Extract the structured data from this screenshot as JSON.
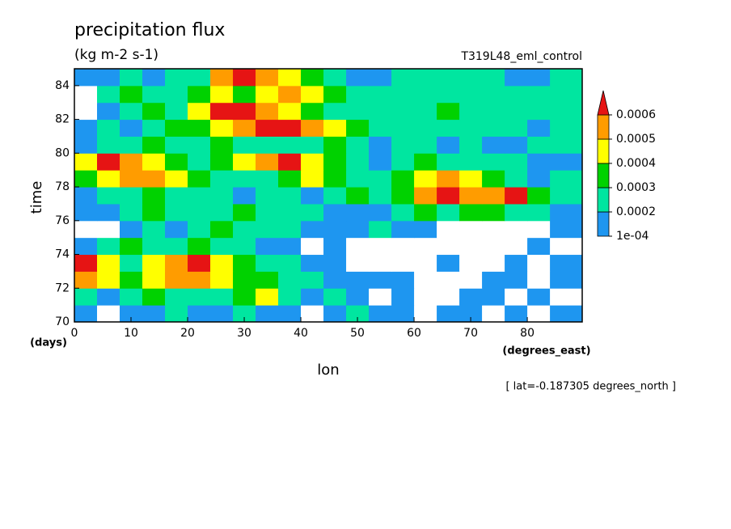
{
  "chart_data": {
    "type": "contourf",
    "title": "precipitation flux",
    "subtitle": "(kg m-2 s-1)",
    "annotation": "T319L48_eml_control",
    "xlabel": "lon",
    "xunit": "(degrees_east)",
    "ylabel": "time",
    "yunit": "(days)",
    "footnote": "[ lat=-0.187305 degrees_north ]",
    "xlim": [
      0,
      89.7
    ],
    "xticks": [
      0,
      10,
      20,
      30,
      40,
      50,
      60,
      70,
      80
    ],
    "ylim": [
      70,
      85
    ],
    "yticks": [
      70,
      72,
      74,
      76,
      78,
      80,
      82,
      84
    ],
    "x": [
      2,
      6,
      10,
      14,
      18,
      22,
      26,
      30,
      34,
      38,
      42,
      46,
      50,
      54,
      58,
      62,
      66,
      70,
      74,
      78,
      82,
      86
    ],
    "y": [
      70.5,
      71.5,
      72.5,
      73.5,
      74.5,
      75.5,
      76.5,
      77.5,
      78.5,
      79.5,
      80.5,
      81.5,
      82.5,
      83.5,
      84.5
    ],
    "z": [
      [
        0.00015,
        5e-05,
        0.00015,
        0.00015,
        0.00025,
        0.00015,
        0.00015,
        0.00025,
        0.00015,
        0.00015,
        5e-05,
        0.00015,
        0.00025,
        0.00015,
        0.00015,
        5e-05,
        0.00015,
        0.00015,
        5e-05,
        0.00015,
        5e-05,
        0.00015
      ],
      [
        0.00025,
        0.00015,
        0.00025,
        0.00035,
        0.00025,
        0.00025,
        0.00025,
        0.00035,
        0.00045,
        0.00025,
        0.00015,
        0.00025,
        0.00015,
        5e-05,
        0.00015,
        5e-05,
        5e-05,
        0.00015,
        0.00015,
        5e-05,
        0.00015,
        5e-05
      ],
      [
        0.00055,
        0.00045,
        0.00035,
        0.00045,
        0.00055,
        0.00055,
        0.00045,
        0.00035,
        0.00035,
        0.00025,
        0.00025,
        0.00015,
        0.00015,
        0.00015,
        0.00015,
        5e-05,
        5e-05,
        5e-05,
        0.00015,
        0.00015,
        5e-05,
        0.00015
      ],
      [
        0.00065,
        0.00045,
        0.00025,
        0.00045,
        0.00055,
        0.00065,
        0.00045,
        0.00035,
        0.00025,
        0.00025,
        0.00015,
        0.00015,
        5e-05,
        5e-05,
        5e-05,
        5e-05,
        0.00015,
        5e-05,
        5e-05,
        0.00015,
        5e-05,
        0.00015
      ],
      [
        0.00015,
        0.00025,
        0.00035,
        0.00025,
        0.00025,
        0.00035,
        0.00025,
        0.00025,
        0.00015,
        0.00015,
        5e-05,
        0.00015,
        5e-05,
        5e-05,
        5e-05,
        5e-05,
        5e-05,
        5e-05,
        5e-05,
        5e-05,
        0.00015,
        5e-05
      ],
      [
        5e-05,
        5e-05,
        0.00015,
        0.00025,
        0.00015,
        0.00025,
        0.00035,
        0.00025,
        0.00025,
        0.00025,
        0.00015,
        0.00015,
        0.00015,
        0.00025,
        0.00015,
        0.00015,
        5e-05,
        5e-05,
        5e-05,
        5e-05,
        5e-05,
        0.00015
      ],
      [
        0.00015,
        0.00015,
        0.00025,
        0.00035,
        0.00025,
        0.00025,
        0.00025,
        0.00035,
        0.00025,
        0.00025,
        0.00025,
        0.00015,
        0.00015,
        0.00015,
        0.00025,
        0.00035,
        0.00025,
        0.00035,
        0.00035,
        0.00025,
        0.00025,
        0.00015
      ],
      [
        0.00015,
        0.00025,
        0.00025,
        0.00035,
        0.00025,
        0.00025,
        0.00025,
        0.00015,
        0.00025,
        0.00025,
        0.00015,
        0.00025,
        0.00035,
        0.00025,
        0.00035,
        0.00055,
        0.00065,
        0.00055,
        0.00055,
        0.00065,
        0.00035,
        0.00025
      ],
      [
        0.00035,
        0.00045,
        0.00055,
        0.00055,
        0.00045,
        0.00035,
        0.00025,
        0.00025,
        0.00025,
        0.00035,
        0.00045,
        0.00035,
        0.00025,
        0.00025,
        0.00035,
        0.00045,
        0.00055,
        0.00045,
        0.00035,
        0.00025,
        0.00015,
        0.00025
      ],
      [
        0.00045,
        0.00065,
        0.00055,
        0.00045,
        0.00035,
        0.00025,
        0.00035,
        0.00045,
        0.00055,
        0.00065,
        0.00045,
        0.00035,
        0.00025,
        0.00015,
        0.00025,
        0.00035,
        0.00025,
        0.00025,
        0.00025,
        0.00025,
        0.00015,
        0.00015
      ],
      [
        0.00015,
        0.00025,
        0.00025,
        0.00035,
        0.00025,
        0.00025,
        0.00035,
        0.00025,
        0.00025,
        0.00025,
        0.00025,
        0.00035,
        0.00025,
        0.00015,
        0.00025,
        0.00025,
        0.00015,
        0.00025,
        0.00015,
        0.00015,
        0.00025,
        0.00025
      ],
      [
        0.00015,
        0.00025,
        0.00015,
        0.00025,
        0.00035,
        0.00035,
        0.00045,
        0.00055,
        0.00065,
        0.00065,
        0.00055,
        0.00045,
        0.00035,
        0.00025,
        0.00025,
        0.00025,
        0.00025,
        0.00025,
        0.00025,
        0.00025,
        0.00015,
        0.00025
      ],
      [
        5e-05,
        0.00015,
        0.00025,
        0.00035,
        0.00025,
        0.00045,
        0.00065,
        0.00065,
        0.00055,
        0.00045,
        0.00035,
        0.00025,
        0.00025,
        0.00025,
        0.00025,
        0.00025,
        0.00035,
        0.00025,
        0.00025,
        0.00025,
        0.00025,
        0.00025
      ],
      [
        5e-05,
        0.00025,
        0.00035,
        0.00025,
        0.00025,
        0.00035,
        0.00045,
        0.00035,
        0.00045,
        0.00055,
        0.00045,
        0.00035,
        0.00025,
        0.00025,
        0.00025,
        0.00025,
        0.00025,
        0.00025,
        0.00025,
        0.00025,
        0.00025,
        0.00025
      ],
      [
        0.00015,
        0.00015,
        0.00025,
        0.00015,
        0.00025,
        0.00025,
        0.00055,
        0.00065,
        0.00055,
        0.00045,
        0.00035,
        0.00025,
        0.00015,
        0.00015,
        0.00025,
        0.00025,
        0.00025,
        0.00025,
        0.00025,
        0.00015,
        0.00015,
        0.00025
      ]
    ],
    "levels": [
      {
        "value": 0.0001,
        "label": "1e-04"
      },
      0.0002,
      0.0003,
      0.0004,
      0.0005,
      0.0006
    ],
    "colors": [
      "#1e96f0",
      "#00e6a0",
      "#00d200",
      "#ffff00",
      "#ff9c00",
      "#e61414"
    ]
  }
}
